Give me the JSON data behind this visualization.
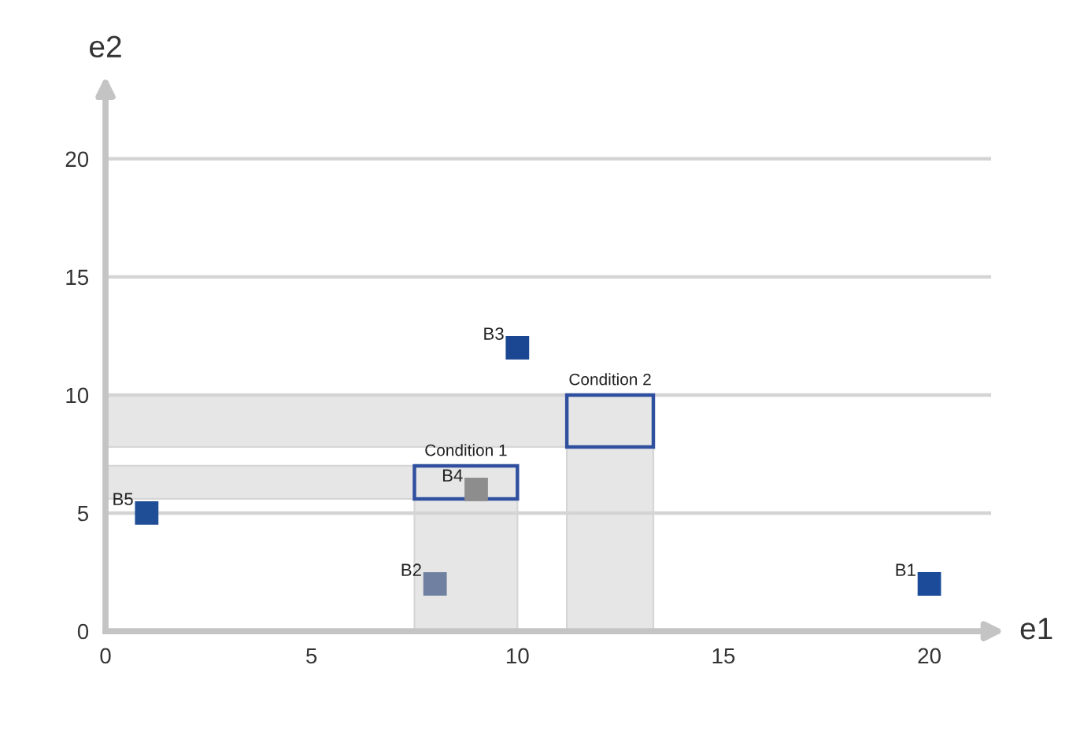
{
  "chart_data": {
    "type": "scatter",
    "xlabel": "e1",
    "ylabel": "e2",
    "x": [
      20,
      8,
      10,
      9,
      1
    ],
    "values": [
      2,
      2,
      12,
      6,
      5
    ],
    "colors": [
      "#1c4b9a",
      "#6f80a0",
      "#1a4692",
      "#8d8d8d",
      "#1f4d96"
    ],
    "marker": "square",
    "xlim": [
      0,
      21.5
    ],
    "ylim": [
      0,
      23
    ],
    "xticks": [
      0,
      5,
      10,
      15,
      20
    ],
    "yticks": [
      0,
      5,
      10,
      15,
      20
    ],
    "grid": "y",
    "bands": [
      {
        "axis": "x",
        "from": 7.5,
        "to": 10,
        "label": "Condition 1",
        "color": "#e6e6e6"
      },
      {
        "axis": "y",
        "from": 5.6,
        "to": 7,
        "color": "#e6e6e6"
      },
      {
        "axis": "x",
        "from": 11.2,
        "to": 13.3,
        "label": "Condition 2",
        "color": "#e6e6e6"
      },
      {
        "axis": "y",
        "from": 7.8,
        "to": 10,
        "color": "#e6e6e6"
      }
    ],
    "annotations": [
      {
        "text": "B1",
        "x": 20,
        "y": 2
      },
      {
        "text": "B2",
        "x": 8,
        "y": 2
      },
      {
        "text": "B3",
        "x": 10,
        "y": 12
      },
      {
        "text": "B4",
        "x": 9,
        "y": 6
      },
      {
        "text": "B5",
        "x": 1,
        "y": 5
      }
    ]
  }
}
